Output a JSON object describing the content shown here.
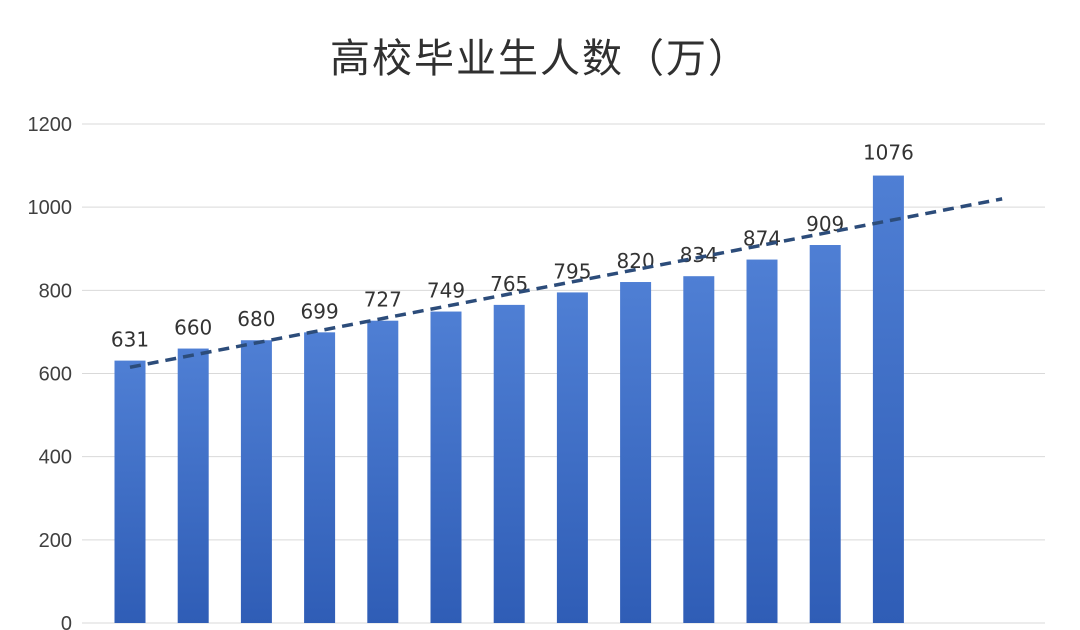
{
  "chart_data": {
    "type": "bar",
    "title": "高校毕业生人数（万）",
    "xlabel": "",
    "ylabel": "",
    "categories": [
      "",
      "",
      "",
      "",
      "",
      "",
      "",
      "",
      "",
      "",
      "",
      "",
      ""
    ],
    "values": [
      631,
      660,
      680,
      699,
      727,
      749,
      765,
      795,
      820,
      834,
      874,
      909,
      1076
    ],
    "data_labels": [
      "631",
      "660",
      "680",
      "699",
      "727",
      "749",
      "765",
      "795",
      "820",
      "834",
      "874",
      "909",
      "1076"
    ],
    "ylim": [
      0,
      1200
    ],
    "y_ticks": [
      0,
      200,
      400,
      600,
      800,
      1000,
      1200
    ],
    "y_tick_labels": [
      "0",
      "200",
      "400",
      "600",
      "800",
      "1000",
      "1200"
    ],
    "grid": true,
    "legend": "none",
    "trendline": {
      "type": "linear",
      "style": "dashed",
      "start_value": 615,
      "end_value": 1020,
      "extends_categories": 1.8
    },
    "colors": {
      "bar_top": "#4f7fd4",
      "bar_bottom": "#2f5db6",
      "trend": "#2c4c7a",
      "grid": "#d9d9d9"
    }
  }
}
